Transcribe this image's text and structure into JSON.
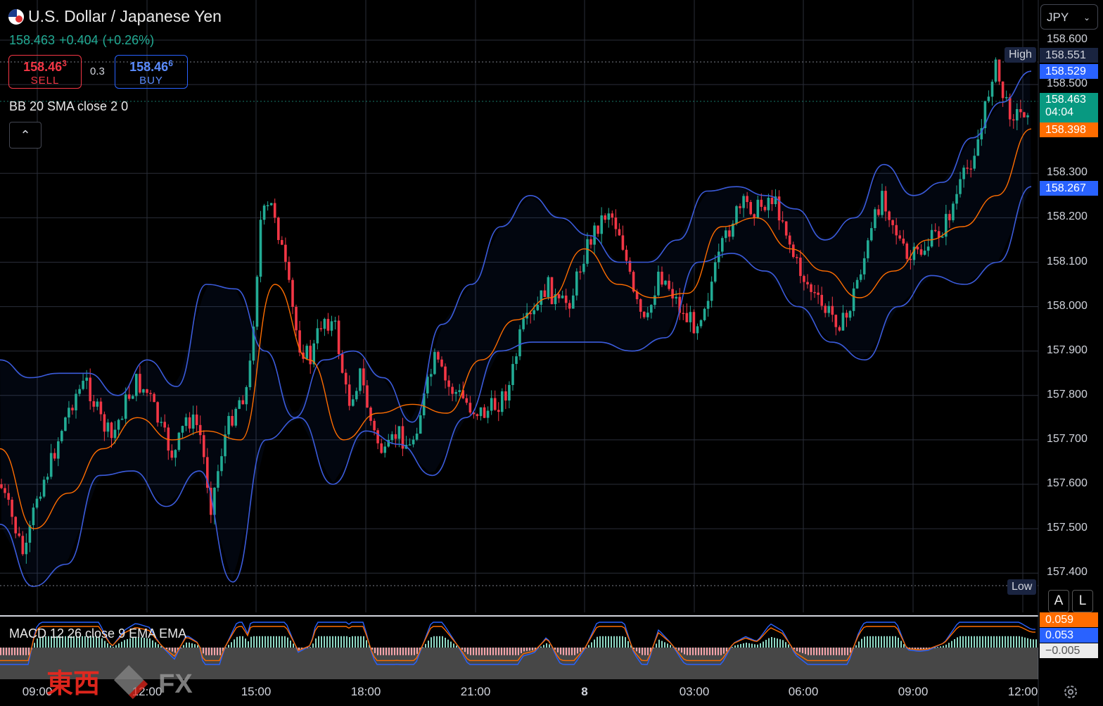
{
  "symbol": {
    "name": "U.S. Dollar / Japanese Yen",
    "flag": "us-jp-flag-icon"
  },
  "quote": {
    "last": "158.463",
    "change": "+0.404",
    "change_pct": "(+0.26%)"
  },
  "trade": {
    "sell_price": "158.46",
    "sell_price_sup": "3",
    "sell_label": "SELL",
    "spread": "0.3",
    "buy_price": "158.46",
    "buy_price_sup": "6",
    "buy_label": "BUY"
  },
  "indicators": {
    "bb": "BB 20 SMA close 2 0",
    "macd": "MACD 12 26 close 9 EMA EMA"
  },
  "currency": "JPY",
  "price_axis": [
    "158.600",
    "158.500",
    "158.300",
    "158.200",
    "158.100",
    "158.000",
    "157.900",
    "157.800",
    "157.700",
    "157.600",
    "157.500",
    "157.400"
  ],
  "price_tags": {
    "high_label": "High",
    "high_value": "158.551",
    "bb_upper": "158.529",
    "last": "158.463",
    "countdown": "04:04",
    "bb_basis": "158.398",
    "bb_lower": "158.267",
    "low_label": "Low"
  },
  "macd_tags": {
    "signal": "0.059",
    "macd": "0.053",
    "hist": "−0.005"
  },
  "time_axis": [
    "09:00",
    "12:00",
    "15:00",
    "18:00",
    "21:00",
    "8",
    "03:00",
    "06:00",
    "09:00",
    "12:00"
  ],
  "scale_buttons": {
    "auto": "A",
    "log": "L"
  },
  "watermark": {
    "brand": "東西",
    "fx": "FX"
  },
  "colors": {
    "up": "#22ab94",
    "down": "#f23645",
    "bb_band": "#2962ff",
    "bb_basis": "#ff6d00",
    "background": "#000000"
  },
  "chart_data": {
    "type": "candlestick",
    "ylim": [
      157.33,
      158.66
    ],
    "high": 158.551,
    "low": 157.37,
    "last": 158.463,
    "x": [
      "09:00",
      "12:00",
      "15:00",
      "18:00",
      "21:00",
      "8",
      "03:00",
      "06:00",
      "09:00",
      "12:00"
    ],
    "close_path": [
      157.6,
      157.52,
      157.43,
      157.58,
      157.64,
      157.73,
      157.8,
      157.83,
      157.75,
      157.7,
      157.78,
      157.83,
      157.8,
      157.72,
      157.66,
      157.75,
      157.73,
      157.55,
      157.7,
      157.78,
      157.82,
      158.2,
      158.23,
      158.08,
      157.92,
      157.88,
      157.98,
      157.95,
      157.78,
      157.85,
      157.72,
      157.66,
      157.72,
      157.68,
      157.78,
      157.88,
      157.82,
      157.8,
      157.77,
      157.76,
      157.78,
      157.82,
      157.95,
      157.98,
      158.05,
      158.0,
      158.02,
      158.12,
      158.18,
      158.22,
      158.16,
      158.02,
      157.95,
      158.08,
      158.04,
      157.98,
      157.96,
      158.03,
      158.12,
      158.2,
      158.23,
      158.22,
      158.25,
      158.2,
      158.1,
      158.05,
      158.0,
      157.98,
      157.96,
      158.06,
      158.15,
      158.26,
      158.18,
      158.1,
      158.12,
      158.15,
      158.18,
      158.25,
      158.32,
      158.4,
      158.55,
      158.45,
      158.43,
      158.46
    ],
    "bb_upper": [
      157.88,
      157.84,
      157.85,
      157.85,
      157.8,
      157.88,
      157.82,
      158.05,
      158.04,
      157.9,
      157.75,
      157.88,
      157.9,
      157.84,
      157.74,
      157.96,
      158.05,
      158.18,
      158.25,
      158.2,
      158.16,
      158.1,
      158.1,
      158.15,
      158.26,
      158.27,
      158.25,
      158.22,
      158.15,
      158.2,
      158.32,
      158.25,
      158.28,
      158.38,
      158.46,
      158.53
    ],
    "bb_basis": [
      157.68,
      157.5,
      157.58,
      157.68,
      157.75,
      157.7,
      157.72,
      157.7,
      158.05,
      157.88,
      157.7,
      157.76,
      157.78,
      157.76,
      157.88,
      157.97,
      158.02,
      158.13,
      158.05,
      158.02,
      158.03,
      158.18,
      158.2,
      158.13,
      158.08,
      158.02,
      158.08,
      158.15,
      158.18,
      158.25,
      158.4
    ],
    "bb_lower": [
      157.51,
      157.37,
      157.42,
      157.62,
      157.63,
      157.55,
      157.63,
      157.38,
      157.7,
      157.75,
      157.6,
      157.72,
      157.69,
      157.62,
      157.75,
      157.9,
      157.92,
      157.92,
      157.92,
      157.9,
      157.93,
      158.1,
      158.12,
      158.08,
      158.0,
      157.92,
      157.88,
      158.0,
      158.07,
      158.05,
      158.1,
      158.27
    ],
    "macd_range": [
      -0.06,
      0.1
    ]
  }
}
